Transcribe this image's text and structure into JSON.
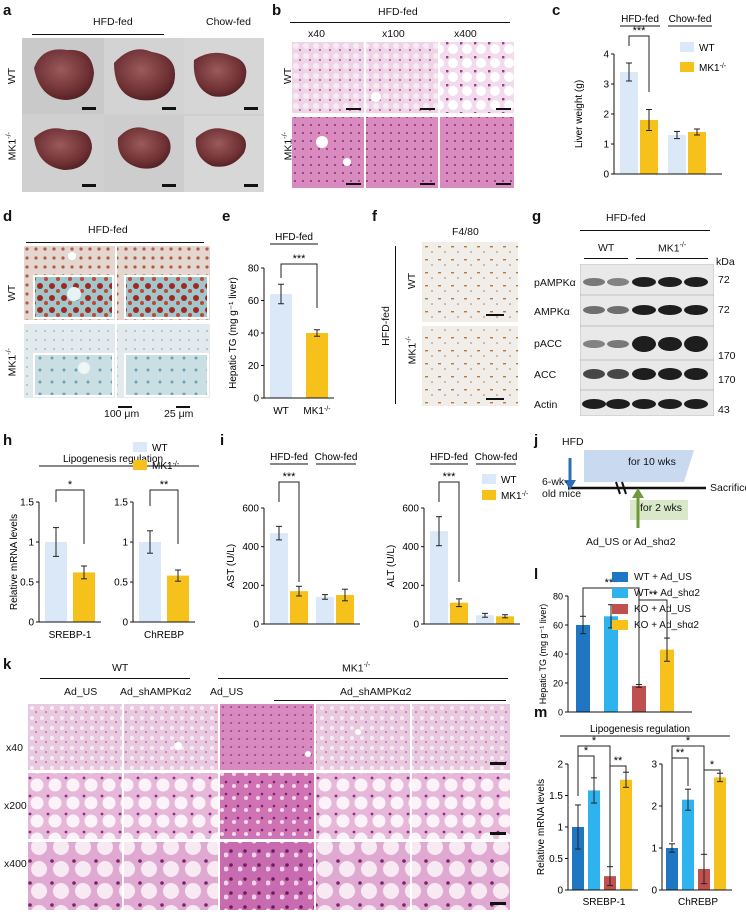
{
  "colors": {
    "wt": "#dbe8f7",
    "mk1": "#f6c11b",
    "wt_ad_us": "#1f77c4",
    "wt_ad_sh": "#2fb3ef",
    "ko_ad_us": "#c0504d",
    "ko_ad_sh": "#f6c11b",
    "green_arrow": "#6f9a3a",
    "blue_arrow": "#2f6db5"
  },
  "a": {
    "label": "a",
    "hfd": "HFD-fed",
    "chow": "Chow-fed",
    "wt": "WT",
    "mk1": "MK1",
    "sup": "-/-"
  },
  "b": {
    "label": "b",
    "hfd": "HFD-fed",
    "mags": [
      "x40",
      "x100",
      "x400"
    ],
    "wt": "WT",
    "mk1": "MK1",
    "sup": "-/-"
  },
  "c": {
    "label": "c"
  },
  "d": {
    "label": "d",
    "hfd": "HFD-fed",
    "wt": "WT",
    "mk1": "MK1",
    "sup": "-/-",
    "scale1": "100 μm",
    "scale2": "25 μm"
  },
  "e": {
    "label": "e"
  },
  "f": {
    "label": "f",
    "title": "F4/80",
    "hfd": "HFD-fed",
    "wt": "WT",
    "mk1": "MK1",
    "sup": "-/-"
  },
  "g": {
    "label": "g",
    "hfd": "HFD-fed",
    "wt": "WT",
    "mk1": "MK1",
    "sup": "-/-",
    "kda": "kDa",
    "bands": [
      "pAMPKα",
      "AMPKα",
      "pACC",
      "ACC",
      "Actin"
    ],
    "markers": [
      "72",
      "72",
      "170",
      "170",
      "43"
    ]
  },
  "h": {
    "label": "h"
  },
  "i": {
    "label": "i"
  },
  "j": {
    "label": "j",
    "hfd": "HFD",
    "mice": "6-wk-",
    "mice2": "old mice",
    "ten": "for 10 wks",
    "two": "for 2 wks",
    "sacrifice": "Sacrifice",
    "ad": "Ad_US or Ad_shα2"
  },
  "k": {
    "label": "k",
    "wt": "WT",
    "mk1": "MK1",
    "sup": "-/-",
    "cols": [
      "Ad_US",
      "Ad_shAMPKα2",
      "Ad_US",
      "Ad_shAMPKα2"
    ],
    "rows": [
      "x40",
      "x200",
      "x400"
    ]
  },
  "l": {
    "label": "l"
  },
  "m": {
    "label": "m"
  },
  "chart_data": [
    {
      "panel": "c",
      "type": "bar",
      "ylabel": "Liver weight (g)",
      "ylim": [
        0,
        4
      ],
      "yticks": [
        "0",
        "1",
        "2",
        "3",
        "4"
      ],
      "groups": [
        "HFD-fed",
        "Chow-fed"
      ],
      "series": [
        {
          "name": "WT",
          "values": [
            3.4,
            1.3
          ],
          "err": [
            0.3,
            0.12
          ]
        },
        {
          "name": "MK1-/-",
          "values": [
            1.8,
            1.4
          ],
          "err": [
            0.35,
            0.1
          ]
        }
      ],
      "legend": [
        "WT",
        "MK1"
      ],
      "legend_sup": "-/-",
      "significance": [
        "***"
      ]
    },
    {
      "panel": "e",
      "type": "bar",
      "title": "HFD-fed",
      "ylabel": "Hepatic TG (mg g⁻¹ liver)",
      "ylim": [
        0,
        80
      ],
      "yticks": [
        "0",
        "20",
        "40",
        "60",
        "80"
      ],
      "categories": [
        "WT",
        "MK1"
      ],
      "cat_sup": "-/-",
      "values": [
        64,
        40
      ],
      "err": [
        6,
        2
      ],
      "significance": [
        "***"
      ]
    },
    {
      "panel": "h",
      "type": "bar",
      "title": "Lipogenesis regulation",
      "ylabel": "Relative mRNA levels",
      "ylim": [
        0,
        1.5
      ],
      "yticks": [
        "0",
        "0.5",
        "1",
        "1.5"
      ],
      "categories": [
        "SREBP-1",
        "ChREBP"
      ],
      "series": [
        {
          "name": "WT",
          "values": [
            1.0,
            1.0
          ],
          "err": [
            0.18,
            0.14
          ]
        },
        {
          "name": "MK1-/-",
          "values": [
            0.62,
            0.58
          ],
          "err": [
            0.08,
            0.07
          ]
        }
      ],
      "legend": [
        "WT",
        "MK1"
      ],
      "legend_sup": "-/-",
      "significance": [
        "*",
        "**"
      ]
    },
    {
      "panel": "i-ast",
      "type": "bar",
      "ylabel": "AST (U/L)",
      "ylim": [
        0,
        600
      ],
      "yticks": [
        "0",
        "200",
        "400",
        "600"
      ],
      "groups": [
        "HFD-fed",
        "Chow-fed"
      ],
      "series": [
        {
          "name": "WT",
          "values": [
            470,
            140
          ],
          "err": [
            35,
            12
          ]
        },
        {
          "name": "MK1-/-",
          "values": [
            170,
            150
          ],
          "err": [
            25,
            30
          ]
        }
      ],
      "significance": [
        "***"
      ]
    },
    {
      "panel": "i-alt",
      "type": "bar",
      "ylabel": "ALT (U/L)",
      "ylim": [
        0,
        600
      ],
      "yticks": [
        "0",
        "200",
        "400",
        "600"
      ],
      "groups": [
        "HFD-fed",
        "Chow-fed"
      ],
      "series": [
        {
          "name": "WT",
          "values": [
            480,
            45
          ],
          "err": [
            75,
            10
          ]
        },
        {
          "name": "MK1-/-",
          "values": [
            110,
            40
          ],
          "err": [
            20,
            8
          ]
        }
      ],
      "legend": [
        "WT",
        "MK1"
      ],
      "legend_sup": "-/-",
      "significance": [
        "***"
      ]
    },
    {
      "panel": "l",
      "type": "bar",
      "ylabel": "Hepatic TG (mg g⁻¹ liver)",
      "ylim": [
        0,
        80
      ],
      "yticks": [
        "0",
        "10",
        "20",
        "30",
        "40",
        "50",
        "60",
        "70",
        "80"
      ],
      "categories": [
        "WT + Ad_US",
        "WT + Ad_shα2",
        "KO + Ad_US",
        "KO + Ad_shα2"
      ],
      "values": [
        60,
        66,
        18,
        43
      ],
      "err": [
        6,
        8,
        1,
        8
      ],
      "significance": [
        "***",
        "**"
      ]
    },
    {
      "panel": "m",
      "type": "bar",
      "title": "Lipogenesis regulation",
      "ylabel": "Relative mRNA levels",
      "categories": [
        "SREBP-1",
        "ChREBP"
      ],
      "left": {
        "ylim": [
          0,
          2
        ],
        "yticks": [
          "0",
          "0.5",
          "1",
          "1.5",
          "2"
        ],
        "values": [
          1.0,
          1.58,
          0.22,
          1.75
        ],
        "err": [
          0.35,
          0.2,
          0.15,
          0.12
        ]
      },
      "right": {
        "ylim": [
          0,
          3
        ],
        "yticks": [
          "0",
          "1",
          "2",
          "3"
        ],
        "values": [
          1.0,
          2.15,
          0.5,
          2.68
        ],
        "err": [
          0.1,
          0.25,
          0.35,
          0.1
        ]
      },
      "significance": [
        "*",
        "*",
        "**",
        "*",
        "**",
        "*"
      ]
    }
  ]
}
